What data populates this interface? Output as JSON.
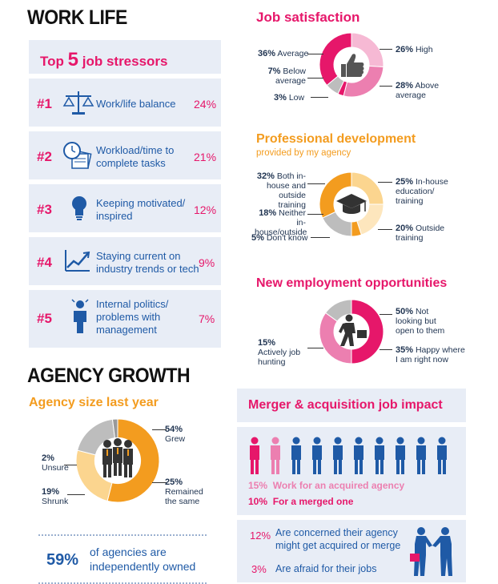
{
  "headings": {
    "work_life": "WORK LIFE",
    "agency_growth": "AGENCY GROWTH"
  },
  "stressors": {
    "title_pre": "Top",
    "title_num": "5",
    "title_post": "job stressors",
    "items": [
      {
        "rank": "#1",
        "icon": "scales-icon",
        "label": "Work/life balance",
        "pct": "24%"
      },
      {
        "rank": "#2",
        "icon": "clock-papers-icon",
        "label": "Workload/time to complete tasks",
        "pct": "21%"
      },
      {
        "rank": "#3",
        "icon": "lightbulb-icon",
        "label": "Keeping motivated/ inspired",
        "pct": "12%"
      },
      {
        "rank": "#4",
        "icon": "trend-chart-icon",
        "label": "Staying current on industry trends or tech",
        "pct": "9%"
      },
      {
        "rank": "#5",
        "icon": "stressed-person-icon",
        "label": "Internal politics/ problems with management",
        "pct": "7%"
      }
    ]
  },
  "chart_data": [
    {
      "type": "pie",
      "title": "Job satisfaction",
      "slices": [
        {
          "label": "High",
          "pct_label": "26%",
          "value": 26,
          "color": "#f6b9d4"
        },
        {
          "label": "Above average",
          "pct_label": "28%",
          "value": 28,
          "color": "#ec7fb0"
        },
        {
          "label": "Low",
          "pct_label": "3%",
          "value": 3,
          "color": "#e6176a"
        },
        {
          "label": "Below average",
          "pct_label": "7%",
          "value": 7,
          "color": "#bdbdbd"
        },
        {
          "label": "Average",
          "pct_label": "36%",
          "value": 36,
          "color": "#e6176a"
        }
      ]
    },
    {
      "type": "pie",
      "title": "Professional development",
      "subtitle": "provided by my agency",
      "slices": [
        {
          "label": "In-house education/ training",
          "pct_label": "25%",
          "value": 25,
          "color": "#fbd58f"
        },
        {
          "label": "Outside training",
          "pct_label": "20%",
          "value": 20,
          "color": "#fde6bd"
        },
        {
          "label": "Don't know",
          "pct_label": "5%",
          "value": 5,
          "color": "#f39c1f"
        },
        {
          "label": "Neither in-house/outside",
          "pct_label": "18%",
          "value": 18,
          "color": "#bdbdbd"
        },
        {
          "label": "Both in-house and outside training",
          "pct_label": "32%",
          "value": 32,
          "color": "#f39c1f"
        }
      ]
    },
    {
      "type": "pie",
      "title": "New employment opportunities",
      "slices": [
        {
          "label": "Not looking but open to them",
          "pct_label": "50%",
          "value": 50,
          "color": "#e6176a"
        },
        {
          "label": "Happy where I am right now",
          "pct_label": "35%",
          "value": 35,
          "color": "#ec7fb0"
        },
        {
          "label": "Actively job hunting",
          "pct_label": "15%",
          "value": 15,
          "color": "#bdbdbd"
        }
      ]
    },
    {
      "type": "pie",
      "title": "Agency size last year",
      "slices": [
        {
          "label": "Grew",
          "pct_label": "54%",
          "value": 54,
          "color": "#f39c1f"
        },
        {
          "label": "Remained the same",
          "pct_label": "25%",
          "value": 25,
          "color": "#fbd58f"
        },
        {
          "label": "Shrunk",
          "pct_label": "19%",
          "value": 19,
          "color": "#bdbdbd"
        },
        {
          "label": "Unsure",
          "pct_label": "2%",
          "value": 2,
          "color": "#999999"
        }
      ]
    }
  ],
  "independent": {
    "pct": "59%",
    "text": "of agencies are independently owned"
  },
  "merger": {
    "title": "Merger & acquisition job impact",
    "people_total": 10,
    "people_acquired": 1.5,
    "people_merged": 1,
    "line1_pct": "15%",
    "line1_text": "Work for an acquired agency",
    "line2_pct": "10%",
    "line2_text": "For a merged one",
    "concern1_pct": "12%",
    "concern1_text": "Are concerned their agency might get acquired or merge",
    "concern2_pct": "3%",
    "concern2_text": "Are afraid for their jobs"
  },
  "colors": {
    "pink": "#e6176a",
    "light_pink": "#ec7fb0",
    "orange": "#f39c1f",
    "blue": "#1f5aa6",
    "panel": "#e8edf6"
  }
}
